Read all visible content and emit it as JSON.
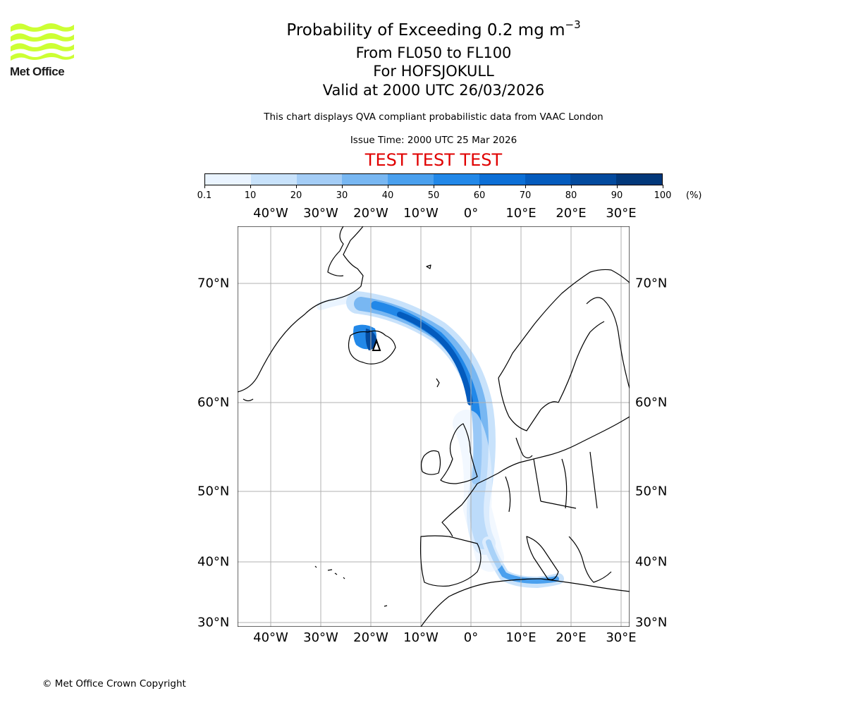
{
  "header": {
    "title_prefix": "Probability of Exceeding 0.2 mg m",
    "title_exponent": "−3",
    "level_line": "From FL050 to FL100",
    "volcano_line": "For HOFSJOKULL",
    "valid_line": "Valid at 2000 UTC 26/03/2026",
    "note": "This chart displays QVA compliant probabilistic data from VAAC London",
    "issue_time": "Issue Time: 2000 UTC 25 Mar 2026",
    "test_banner": "TEST TEST TEST",
    "test_color": "#e00000"
  },
  "logo": {
    "text": "Met Office",
    "color": "#ccff33"
  },
  "colorbar": {
    "ticks": [
      "0.1",
      "10",
      "20",
      "30",
      "40",
      "50",
      "60",
      "70",
      "80",
      "90",
      "100"
    ],
    "unit": "(%)",
    "colors": [
      "#eaf4ff",
      "#c8e2fb",
      "#a4cdf6",
      "#78b7f2",
      "#4aa0ee",
      "#2288e8",
      "#0c6fd6",
      "#045bbd",
      "#034a9e",
      "#02387a"
    ]
  },
  "map": {
    "lon_labels": [
      "40°W",
      "30°W",
      "20°W",
      "10°W",
      "0°",
      "10°E",
      "20°E",
      "30°E"
    ],
    "lat_labels": [
      "70°N",
      "60°N",
      "50°N",
      "40°N",
      "30°N"
    ],
    "grid_color": "#b0b0b0"
  },
  "footer": {
    "copyright": "© Met Office Crown Copyright"
  }
}
